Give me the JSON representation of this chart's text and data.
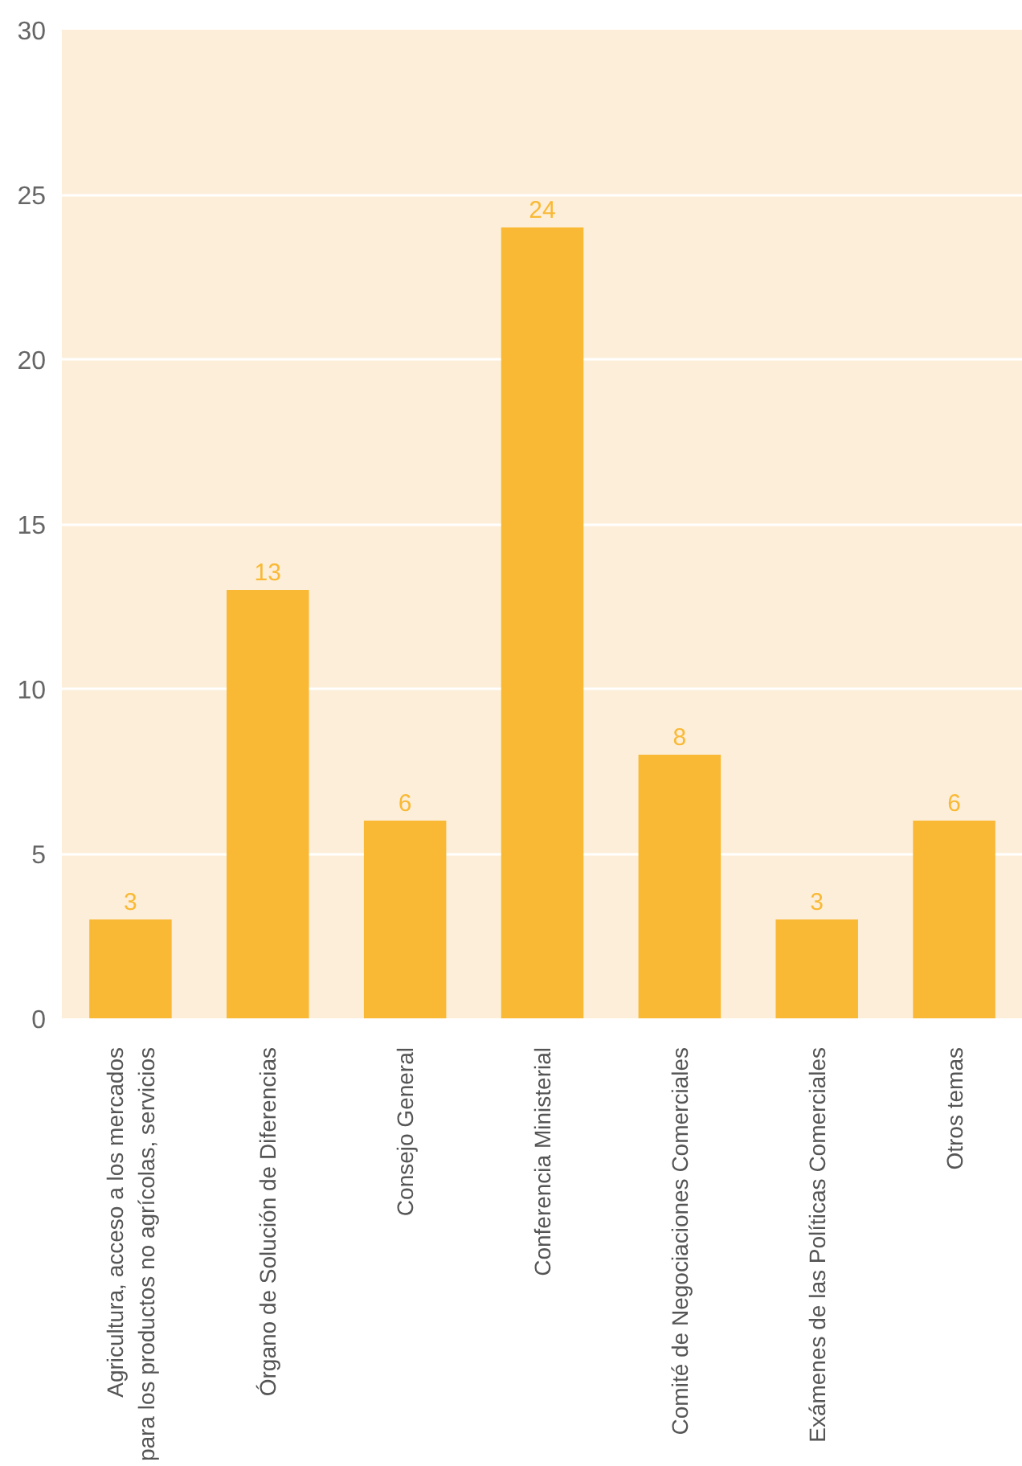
{
  "chart_data": {
    "type": "bar",
    "categories": [
      "Agricultura, acceso a los mercados\npara los productos no agrícolas, servicios",
      "Órgano de Solución de Diferencias",
      "Consejo General",
      "Conferencia Ministerial",
      "Comité de Negociaciones Comerciales",
      "Exámenes de las Políticas Comerciales",
      "Otros temas"
    ],
    "values": [
      3,
      13,
      6,
      24,
      8,
      3,
      6
    ],
    "color": "#f9b935",
    "ylim": [
      0,
      30
    ],
    "yticks": [
      0,
      5,
      10,
      15,
      20,
      25,
      30
    ],
    "grid": "y",
    "data_labels": true
  }
}
